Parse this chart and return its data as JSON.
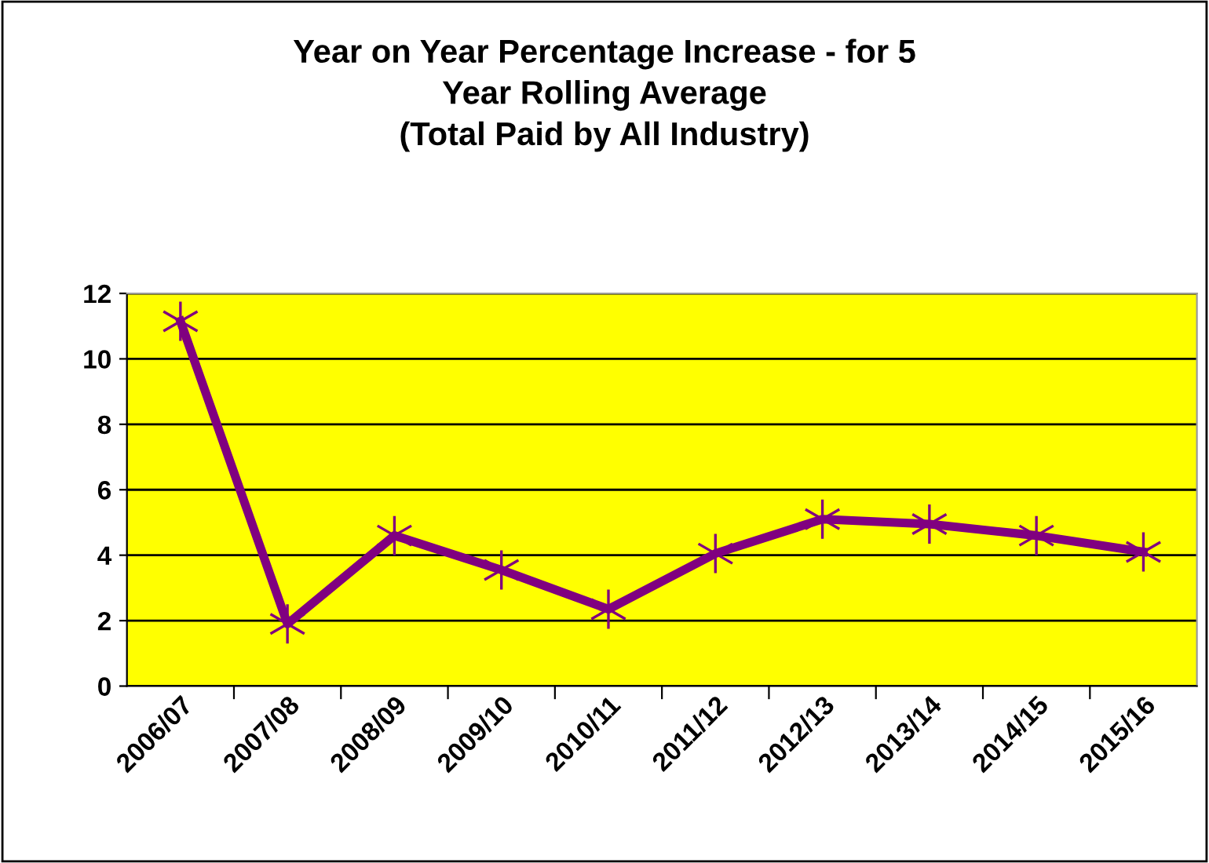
{
  "chart_data": {
    "type": "line",
    "title": "Year on Year Percentage Increase - for 5\nYear Rolling Average\n(Total Paid by All Industry)",
    "categories": [
      "2006/07",
      "2007/08",
      "2008/09",
      "2009/10",
      "2010/11",
      "2011/12",
      "2012/13",
      "2013/14",
      "2014/15",
      "2015/16"
    ],
    "series": [
      {
        "color": "#800080",
        "values": [
          11.15,
          1.9,
          4.6,
          3.55,
          2.35,
          4.05,
          5.1,
          4.95,
          4.6,
          4.1
        ]
      }
    ],
    "ylim": [
      0,
      12
    ],
    "yticks": [
      0,
      2,
      4,
      6,
      8,
      10,
      12
    ],
    "grid": "y",
    "marker": "cross",
    "line_style": "solid",
    "legend": false
  }
}
